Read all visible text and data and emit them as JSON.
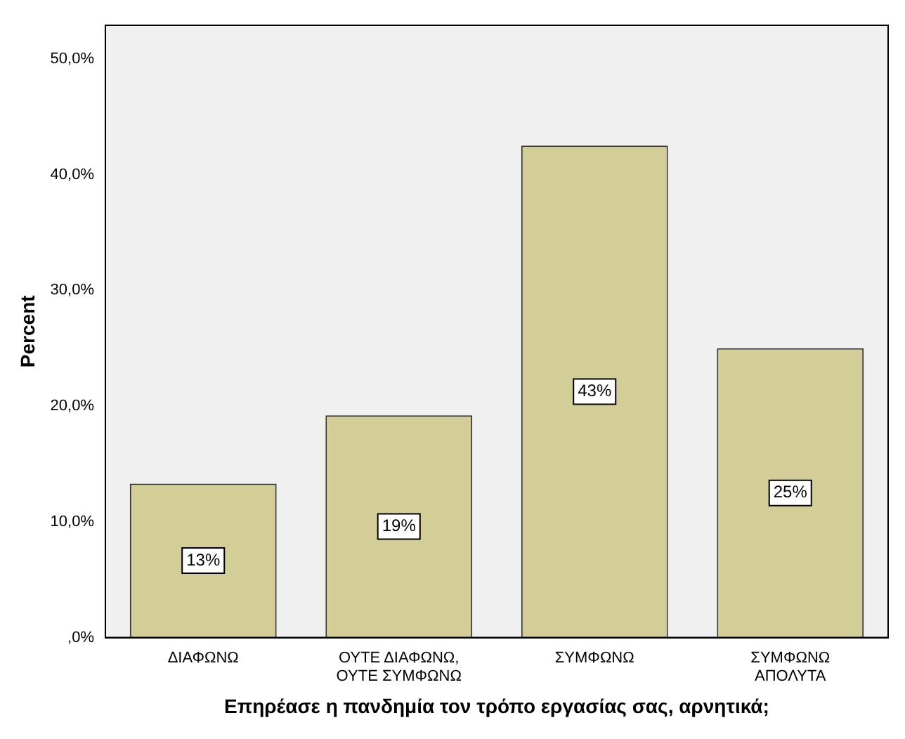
{
  "chart_data": {
    "type": "bar",
    "xlabel": "Επηρέασε η πανδημία τον τρόπο εργασίας σας, αρνητικά;",
    "ylabel": "Percent",
    "categories": [
      "ΔΙΑΦΩΝΩ",
      "ΟΥΤΕ ΔΙΑΦΩΝΩ,\nΟΥΤΕ ΣΥΜΦΩΝΩ",
      "ΣΥΜΦΩΝΩ",
      "ΣΥΜΦΩΝΩ\nΑΠΟΛΥΤΑ"
    ],
    "values": [
      13.3,
      19.2,
      42.5,
      25.0
    ],
    "value_labels": [
      "13%",
      "19%",
      "43%",
      "25%"
    ],
    "color": "#d3ce97",
    "ylim": [
      0,
      52.9
    ],
    "yticks": [
      {
        "value": 0,
        "label": ",0%"
      },
      {
        "value": 10,
        "label": "10,0%"
      },
      {
        "value": 20,
        "label": "20,0%"
      },
      {
        "value": 30,
        "label": "30,0%"
      },
      {
        "value": 40,
        "label": "40,0%"
      },
      {
        "value": 50,
        "label": "50,0%"
      }
    ],
    "grid": false,
    "legend": false
  }
}
